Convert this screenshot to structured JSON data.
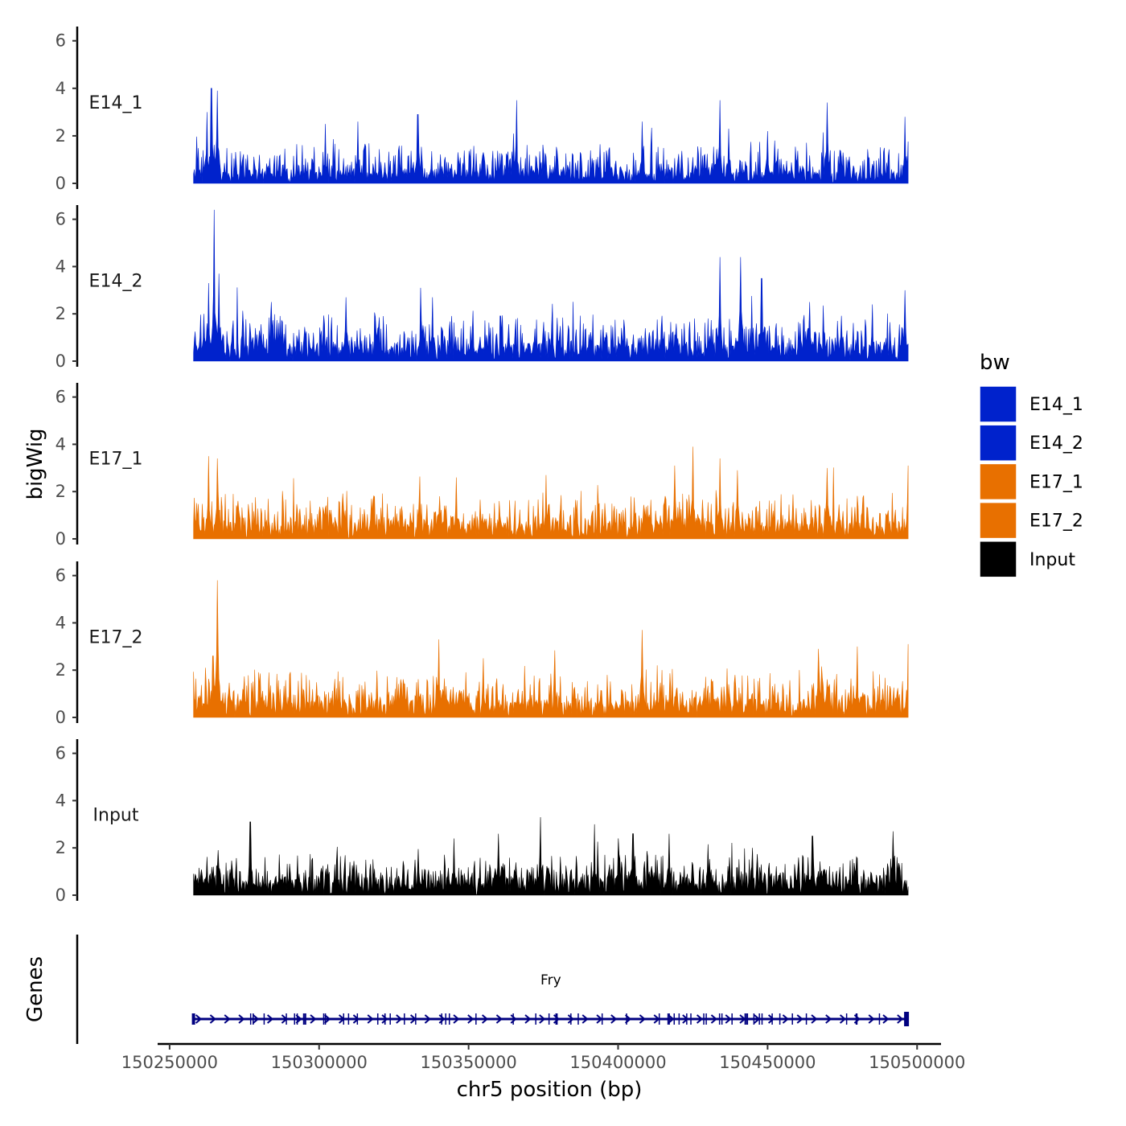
{
  "chart_data": {
    "type": "area",
    "title": "",
    "ylabel": "bigWig",
    "xlabel": "chr5 position (bp)",
    "xlim": [
      150246000,
      150508000
    ],
    "data_range": [
      150258000,
      150497000
    ],
    "ylim": [
      0,
      6.6
    ],
    "y_ticks": [
      0,
      2,
      4,
      6
    ],
    "x_ticks": [
      150250000,
      150300000,
      150350000,
      150400000,
      150450000,
      150500000
    ],
    "x_tick_labels": [
      "150250000",
      "150300000",
      "150350000",
      "150400000",
      "150450000",
      "150500000"
    ],
    "y_tick_labels": [
      "0",
      "2",
      "4",
      "6"
    ],
    "grid": false,
    "legend": {
      "title": "bw",
      "position": "right",
      "entries": [
        {
          "label": "E14_1",
          "color": "#0022CC"
        },
        {
          "label": "E14_2",
          "color": "#0022CC"
        },
        {
          "label": "E17_1",
          "color": "#E87000"
        },
        {
          "label": "E17_2",
          "color": "#E87000"
        },
        {
          "label": "Input",
          "color": "#000000"
        }
      ]
    },
    "series": [
      {
        "name": "E14_1",
        "color": "#0022CC",
        "seed": 11,
        "base": 0.55,
        "spread": 1.3,
        "peaks": [
          {
            "pos": 150264000,
            "value": 4.0
          },
          {
            "pos": 150266000,
            "value": 3.9
          },
          {
            "pos": 150262500,
            "value": 3.0
          },
          {
            "pos": 150313000,
            "value": 2.6
          },
          {
            "pos": 150302000,
            "value": 2.5
          },
          {
            "pos": 150333000,
            "value": 2.9
          },
          {
            "pos": 150366000,
            "value": 3.5
          },
          {
            "pos": 150408000,
            "value": 2.6
          },
          {
            "pos": 150434000,
            "value": 3.5
          },
          {
            "pos": 150470000,
            "value": 3.4
          },
          {
            "pos": 150496000,
            "value": 2.8
          },
          {
            "pos": 150365000,
            "value": 2.1
          },
          {
            "pos": 150450000,
            "value": 2.2
          },
          {
            "pos": 150437000,
            "value": 2.3
          }
        ]
      },
      {
        "name": "E14_2",
        "color": "#0022CC",
        "seed": 23,
        "base": 0.75,
        "spread": 1.45,
        "peaks": [
          {
            "pos": 150265000,
            "value": 6.4
          },
          {
            "pos": 150266500,
            "value": 3.7
          },
          {
            "pos": 150263000,
            "value": 3.3
          },
          {
            "pos": 150261500,
            "value": 2.0
          },
          {
            "pos": 150334000,
            "value": 3.1
          },
          {
            "pos": 150338000,
            "value": 2.7
          },
          {
            "pos": 150284000,
            "value": 2.5
          },
          {
            "pos": 150309000,
            "value": 2.7
          },
          {
            "pos": 150434000,
            "value": 4.4
          },
          {
            "pos": 150441000,
            "value": 4.4
          },
          {
            "pos": 150448000,
            "value": 3.5
          },
          {
            "pos": 150464000,
            "value": 2.5
          },
          {
            "pos": 150496000,
            "value": 3.0
          },
          {
            "pos": 150485000,
            "value": 2.4
          }
        ]
      },
      {
        "name": "E17_1",
        "color": "#E87000",
        "seed": 37,
        "base": 0.75,
        "spread": 1.35,
        "peaks": [
          {
            "pos": 150263000,
            "value": 3.5
          },
          {
            "pos": 150266000,
            "value": 3.4
          },
          {
            "pos": 150425000,
            "value": 3.9
          },
          {
            "pos": 150434000,
            "value": 3.4
          },
          {
            "pos": 150346000,
            "value": 2.6
          },
          {
            "pos": 150419000,
            "value": 3.1
          },
          {
            "pos": 150470000,
            "value": 3.0
          },
          {
            "pos": 150497000,
            "value": 3.1
          },
          {
            "pos": 150440000,
            "value": 2.9
          },
          {
            "pos": 150376000,
            "value": 2.7
          }
        ]
      },
      {
        "name": "E17_2",
        "color": "#E87000",
        "seed": 51,
        "base": 0.75,
        "spread": 1.35,
        "peaks": [
          {
            "pos": 150266000,
            "value": 5.8
          },
          {
            "pos": 150264500,
            "value": 2.6
          },
          {
            "pos": 150262000,
            "value": 2.1
          },
          {
            "pos": 150408000,
            "value": 3.7
          },
          {
            "pos": 150340000,
            "value": 3.3
          },
          {
            "pos": 150480000,
            "value": 3.0
          },
          {
            "pos": 150497000,
            "value": 3.1
          },
          {
            "pos": 150467000,
            "value": 2.9
          },
          {
            "pos": 150355000,
            "value": 2.5
          }
        ]
      },
      {
        "name": "Input",
        "color": "#000000",
        "seed": 67,
        "base": 0.8,
        "spread": 1.1,
        "peaks": [
          {
            "pos": 150277000,
            "value": 3.1
          },
          {
            "pos": 150374000,
            "value": 3.3
          },
          {
            "pos": 150392000,
            "value": 3.0
          },
          {
            "pos": 150405000,
            "value": 2.6
          },
          {
            "pos": 150400000,
            "value": 2.4
          },
          {
            "pos": 150360000,
            "value": 2.6
          },
          {
            "pos": 150417000,
            "value": 2.6
          },
          {
            "pos": 150492000,
            "value": 2.7
          },
          {
            "pos": 150465000,
            "value": 2.5
          },
          {
            "pos": 150345000,
            "value": 2.4
          }
        ]
      }
    ],
    "genes": {
      "label": "Genes",
      "items": [
        {
          "name": "Fry",
          "start": 150258000,
          "end": 150497000,
          "strand": "+",
          "color": "#000080",
          "exon_count": 60
        }
      ]
    }
  }
}
